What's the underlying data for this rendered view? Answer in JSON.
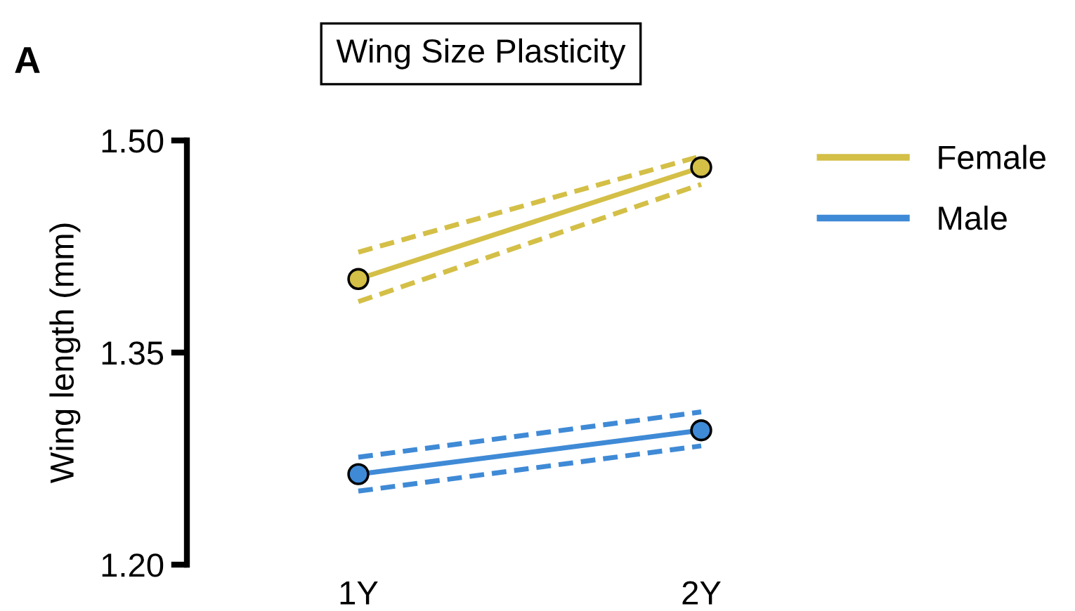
{
  "chart_data": {
    "type": "line",
    "title": "Wing Size Plasticity",
    "ylabel": "Wing length (mm)",
    "annotations": [
      "A"
    ],
    "categories": [
      "1Y",
      "2Y"
    ],
    "series": [
      {
        "name": "Female",
        "color": "#d4bf47",
        "values": [
          1.402,
          1.481
        ]
      },
      {
        "name": "Male",
        "color": "#3f8ad6",
        "values": [
          1.264,
          1.295
        ]
      },
      {
        "color": "#d4bf47",
        "values": [
          1.421,
          1.489
        ],
        "line_style": "dashed",
        "marker": "none"
      },
      {
        "color": "#d4bf47",
        "values": [
          1.386,
          1.469
        ],
        "line_style": "dashed",
        "marker": "none"
      },
      {
        "color": "#3f8ad6",
        "values": [
          1.276,
          1.308
        ],
        "line_style": "dashed",
        "marker": "none"
      },
      {
        "color": "#3f8ad6",
        "values": [
          1.252,
          1.284
        ],
        "line_style": "dashed",
        "marker": "none"
      }
    ],
    "ylim": [
      1.2,
      1.5
    ],
    "yticks": [
      {
        "value": 1.2,
        "label": "1.20"
      },
      {
        "value": 1.35,
        "label": "1.35"
      },
      {
        "value": 1.5,
        "label": "1.50"
      }
    ],
    "marker": "circle",
    "line_style": "solid",
    "legend": "right",
    "grid": false
  }
}
